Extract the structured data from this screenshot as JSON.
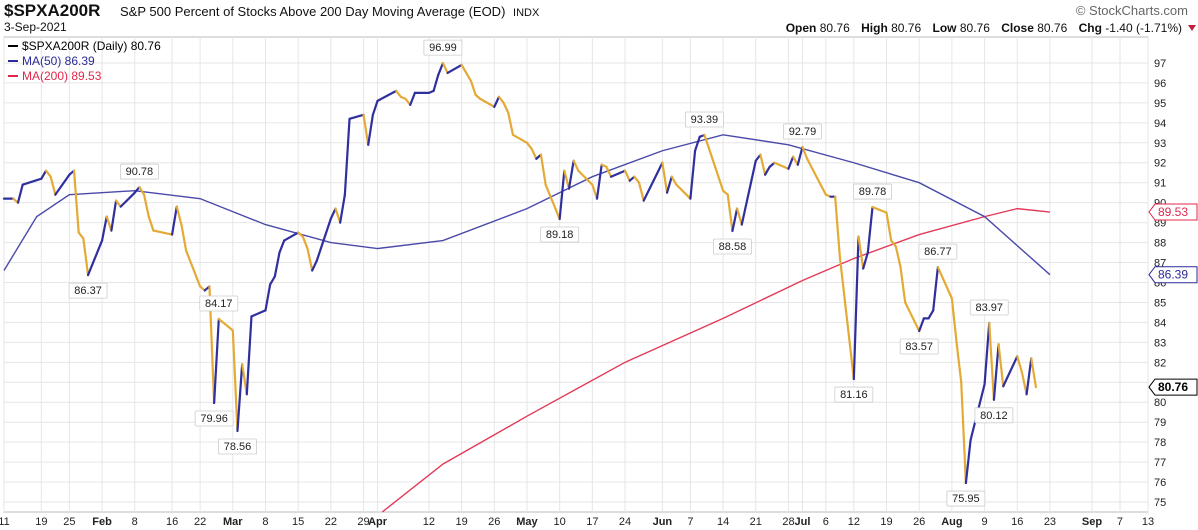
{
  "header": {
    "symbol": "$SPXA200R",
    "description": "S&P 500 Percent of Stocks Above 200 Day Moving Average (EOD)",
    "exchange": "INDX",
    "date": "3-Sep-2021",
    "brand": "© StockCharts.com",
    "ohlc": {
      "open_label": "Open",
      "open": "80.76",
      "high_label": "High",
      "high": "80.76",
      "low_label": "Low",
      "low": "80.76",
      "close_label": "Close",
      "close": "80.76",
      "chg_label": "Chg",
      "chg": "-1.40 (-1.71%)"
    }
  },
  "legend": [
    {
      "text": "$SPXA200R (Daily) 80.76",
      "color": "#000000"
    },
    {
      "text": "MA(50) 86.39",
      "color": "#2a2a9a"
    },
    {
      "text": "MA(200) 89.53",
      "color": "#e0284a"
    }
  ],
  "colors": {
    "up": "#2f2f9e",
    "down": "#e3aa35",
    "ma50": "#4a4aaa",
    "ma200": "#e23a58",
    "grid": "#e6e6e6"
  },
  "chart_data": {
    "type": "line",
    "ylim": [
      74.5,
      98.3
    ],
    "y_ticks": [
      75,
      76,
      77,
      78,
      79,
      80,
      81,
      82,
      83,
      84,
      85,
      86,
      87,
      88,
      89,
      90,
      91,
      92,
      93,
      94,
      95,
      96,
      97
    ],
    "x_date_range": [
      "2021-01-11",
      "2021-09-13"
    ],
    "x_ticks": [
      {
        "date": "2021-01-11",
        "label": "11",
        "bold": false
      },
      {
        "date": "2021-01-19",
        "label": "19",
        "bold": false
      },
      {
        "date": "2021-01-25",
        "label": "25",
        "bold": false
      },
      {
        "date": "2021-02-01",
        "label": "Feb",
        "bold": true
      },
      {
        "date": "2021-02-08",
        "label": "8",
        "bold": false
      },
      {
        "date": "2021-02-16",
        "label": "16",
        "bold": false
      },
      {
        "date": "2021-02-22",
        "label": "22",
        "bold": false
      },
      {
        "date": "2021-03-01",
        "label": "Mar",
        "bold": true
      },
      {
        "date": "2021-03-08",
        "label": "8",
        "bold": false
      },
      {
        "date": "2021-03-15",
        "label": "15",
        "bold": false
      },
      {
        "date": "2021-03-22",
        "label": "22",
        "bold": false
      },
      {
        "date": "2021-03-29",
        "label": "29",
        "bold": false
      },
      {
        "date": "2021-04-01",
        "label": "Apr",
        "bold": true
      },
      {
        "date": "2021-04-12",
        "label": "12",
        "bold": false
      },
      {
        "date": "2021-04-19",
        "label": "19",
        "bold": false
      },
      {
        "date": "2021-04-26",
        "label": "26",
        "bold": false
      },
      {
        "date": "2021-05-03",
        "label": "May",
        "bold": true
      },
      {
        "date": "2021-05-10",
        "label": "10",
        "bold": false
      },
      {
        "date": "2021-05-17",
        "label": "17",
        "bold": false
      },
      {
        "date": "2021-05-24",
        "label": "24",
        "bold": false
      },
      {
        "date": "2021-06-01",
        "label": "Jun",
        "bold": true
      },
      {
        "date": "2021-06-07",
        "label": "7",
        "bold": false
      },
      {
        "date": "2021-06-14",
        "label": "14",
        "bold": false
      },
      {
        "date": "2021-06-21",
        "label": "21",
        "bold": false
      },
      {
        "date": "2021-06-28",
        "label": "28",
        "bold": false
      },
      {
        "date": "2021-07-01",
        "label": "Jul",
        "bold": true
      },
      {
        "date": "2021-07-06",
        "label": "6",
        "bold": false
      },
      {
        "date": "2021-07-12",
        "label": "12",
        "bold": false
      },
      {
        "date": "2021-07-19",
        "label": "19",
        "bold": false
      },
      {
        "date": "2021-07-26",
        "label": "26",
        "bold": false
      },
      {
        "date": "2021-08-02",
        "label": "Aug",
        "bold": true
      },
      {
        "date": "2021-08-09",
        "label": "9",
        "bold": false
      },
      {
        "date": "2021-08-16",
        "label": "16",
        "bold": false
      },
      {
        "date": "2021-08-23",
        "label": "23",
        "bold": false
      },
      {
        "date": "2021-09-01",
        "label": "Sep",
        "bold": true
      },
      {
        "date": "2021-09-07",
        "label": "7",
        "bold": false
      },
      {
        "date": "2021-09-13",
        "label": "13",
        "bold": false
      }
    ],
    "series": [
      {
        "name": "$SPXA200R (Daily)",
        "points": [
          [
            "2021-01-11",
            90.2
          ],
          [
            "2021-01-13",
            90.2
          ],
          [
            "2021-01-14",
            90.0
          ],
          [
            "2021-01-15",
            90.9
          ],
          [
            "2021-01-19",
            91.2
          ],
          [
            "2021-01-20",
            91.6
          ],
          [
            "2021-01-21",
            91.3
          ],
          [
            "2021-01-22",
            90.4
          ],
          [
            "2021-01-25",
            91.4
          ],
          [
            "2021-01-26",
            91.6
          ],
          [
            "2021-01-27",
            88.5
          ],
          [
            "2021-01-28",
            88.2
          ],
          [
            "2021-01-29",
            86.37
          ],
          [
            "2021-02-01",
            88.1
          ],
          [
            "2021-02-02",
            89.3
          ],
          [
            "2021-02-03",
            88.6
          ],
          [
            "2021-02-04",
            90.1
          ],
          [
            "2021-02-05",
            89.8
          ],
          [
            "2021-02-08",
            90.5
          ],
          [
            "2021-02-09",
            90.78
          ],
          [
            "2021-02-10",
            90.4
          ],
          [
            "2021-02-11",
            89.3
          ],
          [
            "2021-02-12",
            88.6
          ],
          [
            "2021-02-16",
            88.4
          ],
          [
            "2021-02-17",
            89.8
          ],
          [
            "2021-02-18",
            88.9
          ],
          [
            "2021-02-19",
            87.6
          ],
          [
            "2021-02-22",
            85.8
          ],
          [
            "2021-02-23",
            85.6
          ],
          [
            "2021-02-24",
            85.8
          ],
          [
            "2021-02-25",
            79.96
          ],
          [
            "2021-02-26",
            84.17
          ],
          [
            "2021-03-01",
            83.6
          ],
          [
            "2021-03-02",
            78.56
          ],
          [
            "2021-03-03",
            81.9
          ],
          [
            "2021-03-04",
            80.4
          ],
          [
            "2021-03-05",
            84.3
          ],
          [
            "2021-03-08",
            84.6
          ],
          [
            "2021-03-09",
            85.9
          ],
          [
            "2021-03-10",
            86.3
          ],
          [
            "2021-03-11",
            87.5
          ],
          [
            "2021-03-12",
            88.1
          ],
          [
            "2021-03-15",
            88.5
          ],
          [
            "2021-03-16",
            88.3
          ],
          [
            "2021-03-17",
            87.7
          ],
          [
            "2021-03-18",
            86.6
          ],
          [
            "2021-03-19",
            87.1
          ],
          [
            "2021-03-22",
            89.2
          ],
          [
            "2021-03-23",
            89.7
          ],
          [
            "2021-03-24",
            89.0
          ],
          [
            "2021-03-25",
            90.4
          ],
          [
            "2021-03-26",
            94.2
          ],
          [
            "2021-03-29",
            94.4
          ],
          [
            "2021-03-30",
            92.9
          ],
          [
            "2021-03-31",
            94.4
          ],
          [
            "2021-04-01",
            95.1
          ],
          [
            "2021-04-05",
            95.6
          ],
          [
            "2021-04-06",
            95.3
          ],
          [
            "2021-04-07",
            95.2
          ],
          [
            "2021-04-08",
            94.9
          ],
          [
            "2021-04-09",
            95.5
          ],
          [
            "2021-04-12",
            95.5
          ],
          [
            "2021-04-13",
            95.6
          ],
          [
            "2021-04-14",
            96.4
          ],
          [
            "2021-04-15",
            96.99
          ],
          [
            "2021-04-16",
            96.5
          ],
          [
            "2021-04-19",
            96.9
          ],
          [
            "2021-04-20",
            96.5
          ],
          [
            "2021-04-21",
            96.1
          ],
          [
            "2021-04-22",
            95.4
          ],
          [
            "2021-04-23",
            95.2
          ],
          [
            "2021-04-26",
            94.8
          ],
          [
            "2021-04-27",
            95.3
          ],
          [
            "2021-04-28",
            95.0
          ],
          [
            "2021-04-29",
            94.5
          ],
          [
            "2021-04-30",
            93.4
          ],
          [
            "2021-05-03",
            93.0
          ],
          [
            "2021-05-04",
            92.7
          ],
          [
            "2021-05-05",
            92.2
          ],
          [
            "2021-05-06",
            92.4
          ],
          [
            "2021-05-07",
            90.9
          ],
          [
            "2021-05-10",
            89.18
          ],
          [
            "2021-05-11",
            91.6
          ],
          [
            "2021-05-12",
            90.7
          ],
          [
            "2021-05-13",
            92.1
          ],
          [
            "2021-05-14",
            91.6
          ],
          [
            "2021-05-17",
            90.9
          ],
          [
            "2021-05-18",
            90.2
          ],
          [
            "2021-05-19",
            91.9
          ],
          [
            "2021-05-20",
            91.8
          ],
          [
            "2021-05-21",
            91.3
          ],
          [
            "2021-05-24",
            91.6
          ],
          [
            "2021-05-25",
            91.1
          ],
          [
            "2021-05-26",
            91.3
          ],
          [
            "2021-05-27",
            91.0
          ],
          [
            "2021-05-28",
            90.1
          ],
          [
            "2021-06-01",
            92.0
          ],
          [
            "2021-06-02",
            90.5
          ],
          [
            "2021-06-03",
            91.3
          ],
          [
            "2021-06-04",
            90.9
          ],
          [
            "2021-06-07",
            90.2
          ],
          [
            "2021-06-08",
            92.6
          ],
          [
            "2021-06-09",
            93.3
          ],
          [
            "2021-06-10",
            93.39
          ],
          [
            "2021-06-11",
            92.7
          ],
          [
            "2021-06-14",
            90.6
          ],
          [
            "2021-06-15",
            90.4
          ],
          [
            "2021-06-16",
            88.58
          ],
          [
            "2021-06-17",
            89.7
          ],
          [
            "2021-06-18",
            88.9
          ],
          [
            "2021-06-21",
            92.1
          ],
          [
            "2021-06-22",
            92.4
          ],
          [
            "2021-06-23",
            91.4
          ],
          [
            "2021-06-24",
            91.8
          ],
          [
            "2021-06-25",
            92.0
          ],
          [
            "2021-06-28",
            91.7
          ],
          [
            "2021-06-29",
            92.3
          ],
          [
            "2021-06-30",
            91.9
          ],
          [
            "2021-07-01",
            92.79
          ],
          [
            "2021-07-02",
            92.2
          ],
          [
            "2021-07-06",
            90.4
          ],
          [
            "2021-07-07",
            90.3
          ],
          [
            "2021-07-08",
            90.3
          ],
          [
            "2021-07-09",
            87.3
          ],
          [
            "2021-07-12",
            81.16
          ],
          [
            "2021-07-13",
            88.3
          ],
          [
            "2021-07-14",
            86.7
          ],
          [
            "2021-07-15",
            87.5
          ],
          [
            "2021-07-16",
            89.78
          ],
          [
            "2021-07-19",
            89.5
          ],
          [
            "2021-07-20",
            88.1
          ],
          [
            "2021-07-21",
            87.8
          ],
          [
            "2021-07-22",
            86.77
          ],
          [
            "2021-07-23",
            85.0
          ],
          [
            "2021-07-26",
            83.57
          ],
          [
            "2021-07-27",
            84.2
          ],
          [
            "2021-07-28",
            84.2
          ],
          [
            "2021-07-29",
            84.6
          ],
          [
            "2021-07-30",
            86.77
          ],
          [
            "2021-08-02",
            85.2
          ],
          [
            "2021-08-03",
            83.0
          ],
          [
            "2021-08-04",
            81.0
          ],
          [
            "2021-08-05",
            75.95
          ],
          [
            "2021-08-06",
            78.1
          ],
          [
            "2021-08-09",
            80.9
          ],
          [
            "2021-08-10",
            83.97
          ],
          [
            "2021-08-11",
            80.12
          ],
          [
            "2021-08-12",
            82.9
          ],
          [
            "2021-08-13",
            80.8
          ],
          [
            "2021-08-16",
            82.3
          ],
          [
            "2021-08-17",
            81.5
          ],
          [
            "2021-08-18",
            80.4
          ],
          [
            "2021-08-19",
            82.2
          ],
          [
            "2021-08-20",
            80.76
          ]
        ]
      },
      {
        "name": "MA(50)",
        "points": [
          [
            "2021-01-11",
            86.6
          ],
          [
            "2021-01-18",
            89.3
          ],
          [
            "2021-01-25",
            90.4
          ],
          [
            "2021-02-08",
            90.6
          ],
          [
            "2021-02-22",
            90.2
          ],
          [
            "2021-03-08",
            88.9
          ],
          [
            "2021-03-22",
            88.0
          ],
          [
            "2021-04-01",
            87.7
          ],
          [
            "2021-04-15",
            88.1
          ],
          [
            "2021-05-03",
            89.7
          ],
          [
            "2021-05-17",
            91.3
          ],
          [
            "2021-06-01",
            92.6
          ],
          [
            "2021-06-14",
            93.4
          ],
          [
            "2021-06-28",
            92.9
          ],
          [
            "2021-07-12",
            92.0
          ],
          [
            "2021-07-26",
            91.0
          ],
          [
            "2021-08-09",
            89.3
          ],
          [
            "2021-08-23",
            86.39
          ]
        ]
      },
      {
        "name": "MA(200)",
        "points": [
          [
            "2021-04-02",
            74.5
          ],
          [
            "2021-04-15",
            76.9
          ],
          [
            "2021-05-03",
            79.3
          ],
          [
            "2021-05-24",
            82.0
          ],
          [
            "2021-06-14",
            84.2
          ],
          [
            "2021-07-01",
            86.1
          ],
          [
            "2021-07-12",
            87.2
          ],
          [
            "2021-07-26",
            88.4
          ],
          [
            "2021-08-09",
            89.3
          ],
          [
            "2021-08-16",
            89.7
          ],
          [
            "2021-08-23",
            89.53
          ]
        ]
      }
    ],
    "annotations": [
      {
        "date": "2021-01-29",
        "value": 86.37,
        "label": "86.37",
        "pos": "below"
      },
      {
        "date": "2021-02-09",
        "value": 90.78,
        "label": "90.78",
        "pos": "above"
      },
      {
        "date": "2021-02-25",
        "value": 79.96,
        "label": "79.96",
        "pos": "below"
      },
      {
        "date": "2021-02-26",
        "value": 84.17,
        "label": "84.17",
        "pos": "above"
      },
      {
        "date": "2021-03-02",
        "value": 78.56,
        "label": "78.56",
        "pos": "below"
      },
      {
        "date": "2021-04-15",
        "value": 96.99,
        "label": "96.99",
        "pos": "above"
      },
      {
        "date": "2021-05-10",
        "value": 89.18,
        "label": "89.18",
        "pos": "below"
      },
      {
        "date": "2021-06-10",
        "value": 93.39,
        "label": "93.39",
        "pos": "above"
      },
      {
        "date": "2021-06-16",
        "value": 88.58,
        "label": "88.58",
        "pos": "below"
      },
      {
        "date": "2021-07-01",
        "value": 92.79,
        "label": "92.79",
        "pos": "above"
      },
      {
        "date": "2021-07-12",
        "value": 81.16,
        "label": "81.16",
        "pos": "below"
      },
      {
        "date": "2021-07-16",
        "value": 89.78,
        "label": "89.78",
        "pos": "above"
      },
      {
        "date": "2021-07-26",
        "value": 83.57,
        "label": "83.57",
        "pos": "below"
      },
      {
        "date": "2021-07-30",
        "value": 86.77,
        "label": "86.77",
        "pos": "above"
      },
      {
        "date": "2021-08-05",
        "value": 75.95,
        "label": "75.95",
        "pos": "below"
      },
      {
        "date": "2021-08-10",
        "value": 83.97,
        "label": "83.97",
        "pos": "above"
      },
      {
        "date": "2021-08-11",
        "value": 80.12,
        "label": "80.12",
        "pos": "below"
      }
    ],
    "right_tags": [
      {
        "value": 89.53,
        "label": "89.53",
        "color": "#e0284a",
        "bold": false
      },
      {
        "value": 86.39,
        "label": "86.39",
        "color": "#2a2a9a",
        "bold": false
      },
      {
        "value": 80.76,
        "label": "80.76",
        "color": "#000000",
        "bold": true
      }
    ]
  }
}
